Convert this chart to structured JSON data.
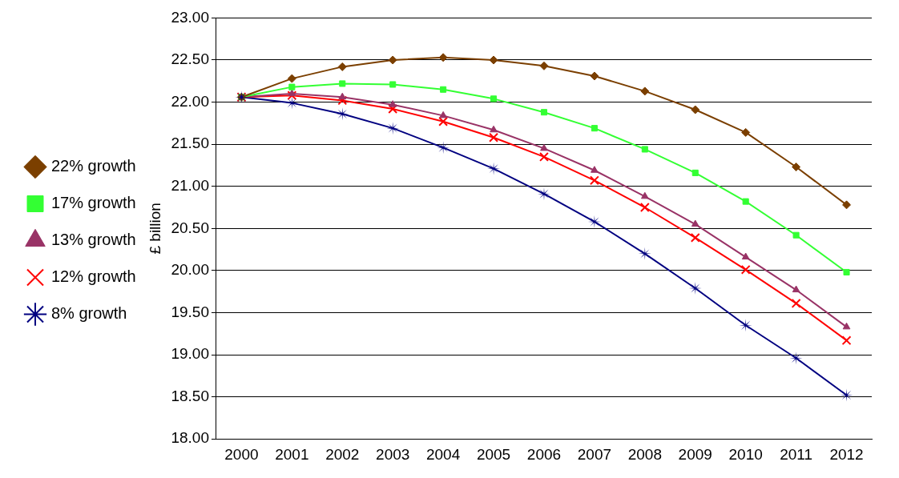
{
  "chart_data": {
    "type": "line",
    "ylabel": "£ billion",
    "categories": [
      "2000",
      "2001",
      "2002",
      "2003",
      "2004",
      "2005",
      "2006",
      "2007",
      "2008",
      "2009",
      "2010",
      "2011",
      "2012"
    ],
    "series": [
      {
        "name": "22% growth",
        "color": "#7b3f00",
        "marker": "diamond",
        "values": [
          22.06,
          22.28,
          22.42,
          22.5,
          22.53,
          22.5,
          22.43,
          22.31,
          22.13,
          21.91,
          21.64,
          21.23,
          20.78
        ]
      },
      {
        "name": "17% growth",
        "color": "#33ff33",
        "marker": "square",
        "values": [
          22.06,
          22.18,
          22.22,
          22.21,
          22.15,
          22.04,
          21.88,
          21.69,
          21.44,
          21.16,
          20.82,
          20.42,
          19.98
        ]
      },
      {
        "name": "13% growth",
        "color": "#993366",
        "marker": "triangle",
        "values": [
          22.06,
          22.1,
          22.06,
          21.97,
          21.84,
          21.67,
          21.45,
          21.19,
          20.88,
          20.55,
          20.16,
          19.77,
          19.33
        ]
      },
      {
        "name": "12% growth",
        "color": "#ff0000",
        "marker": "cross",
        "values": [
          22.06,
          22.08,
          22.02,
          21.92,
          21.77,
          21.58,
          21.35,
          21.07,
          20.75,
          20.39,
          20.01,
          19.61,
          19.17
        ]
      },
      {
        "name": "8% growth",
        "color": "#000080",
        "marker": "star",
        "values": [
          22.06,
          21.99,
          21.86,
          21.69,
          21.46,
          21.21,
          20.91,
          20.58,
          20.2,
          19.79,
          19.35,
          18.96,
          18.52
        ]
      }
    ],
    "ylim": [
      18,
      23
    ],
    "yticks": [
      {
        "value": 18,
        "label": "18.00"
      },
      {
        "value": 18.5,
        "label": "18.50"
      },
      {
        "value": 19,
        "label": "19.00"
      },
      {
        "value": 19.5,
        "label": "19.50"
      },
      {
        "value": 20,
        "label": "20.00"
      },
      {
        "value": 20.5,
        "label": "20.50"
      },
      {
        "value": 21,
        "label": "21.00"
      },
      {
        "value": 21.5,
        "label": "21.50"
      },
      {
        "value": 22,
        "label": "22.00"
      },
      {
        "value": 22.5,
        "label": "22.50"
      },
      {
        "value": 23,
        "label": "23.00"
      }
    ],
    "grid": "y",
    "legend": "left",
    "line_style": "solid"
  }
}
